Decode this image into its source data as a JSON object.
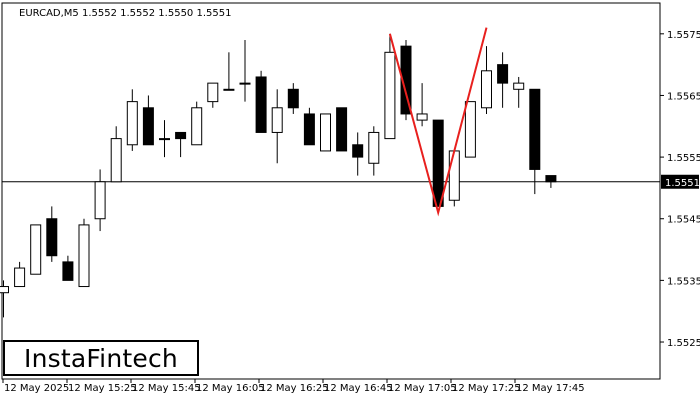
{
  "header": "EURCAD,M5  1.5552 1.5552 1.5550 1.5551",
  "logo_text": "InstaFintech",
  "colors": {
    "background": "#ffffff",
    "axis": "#000000",
    "bull_fill": "#ffffff",
    "bear_fill": "#000000",
    "pattern_line": "#e8201e",
    "price_line": "#000000"
  },
  "chart_data": {
    "type": "candlestick",
    "symbol": "EURCAD",
    "timeframe": "M5",
    "ylim": [
      1.5519,
      1.558
    ],
    "y_ticks": [
      "1.5575",
      "1.5565",
      "1.5555",
      "1.5545",
      "1.5535",
      "1.5525"
    ],
    "x_ticks": [
      "12 May 2025",
      "12 May 15:25",
      "12 May 15:45",
      "12 May 16:05",
      "12 May 16:25",
      "12 May 16:45",
      "12 May 17:05",
      "12 May 17:25",
      "12 May 17:45"
    ],
    "current_price": "1.5551",
    "candles": [
      {
        "o": 1.5533,
        "h": 1.5535,
        "l": 1.5529,
        "c": 1.5534
      },
      {
        "o": 1.5534,
        "h": 1.5538,
        "l": 1.5534,
        "c": 1.5537
      },
      {
        "o": 1.5536,
        "h": 1.5544,
        "l": 1.5536,
        "c": 1.5544
      },
      {
        "o": 1.5545,
        "h": 1.5547,
        "l": 1.5538,
        "c": 1.5539
      },
      {
        "o": 1.5538,
        "h": 1.5539,
        "l": 1.5535,
        "c": 1.5535
      },
      {
        "o": 1.5534,
        "h": 1.5545,
        "l": 1.5534,
        "c": 1.5544
      },
      {
        "o": 1.5545,
        "h": 1.5553,
        "l": 1.5543,
        "c": 1.5551
      },
      {
        "o": 1.5551,
        "h": 1.556,
        "l": 1.5551,
        "c": 1.5558
      },
      {
        "o": 1.5557,
        "h": 1.5566,
        "l": 1.5556,
        "c": 1.5564
      },
      {
        "o": 1.5563,
        "h": 1.5565,
        "l": 1.5557,
        "c": 1.5557
      },
      {
        "o": 1.5558,
        "h": 1.5561,
        "l": 1.5555,
        "c": 1.5558
      },
      {
        "o": 1.5559,
        "h": 1.5559,
        "l": 1.5555,
        "c": 1.5558
      },
      {
        "o": 1.5557,
        "h": 1.5564,
        "l": 1.5557,
        "c": 1.5563
      },
      {
        "o": 1.5564,
        "h": 1.5567,
        "l": 1.5563,
        "c": 1.5567
      },
      {
        "o": 1.5566,
        "h": 1.5572,
        "l": 1.5566,
        "c": 1.5566
      },
      {
        "o": 1.5567,
        "h": 1.5574,
        "l": 1.5564,
        "c": 1.5567
      },
      {
        "o": 1.5568,
        "h": 1.5569,
        "l": 1.5559,
        "c": 1.5559
      },
      {
        "o": 1.5559,
        "h": 1.5566,
        "l": 1.5554,
        "c": 1.5563
      },
      {
        "o": 1.5566,
        "h": 1.5567,
        "l": 1.5562,
        "c": 1.5563
      },
      {
        "o": 1.5562,
        "h": 1.5563,
        "l": 1.5557,
        "c": 1.5557
      },
      {
        "o": 1.5556,
        "h": 1.5562,
        "l": 1.5556,
        "c": 1.5562
      },
      {
        "o": 1.5563,
        "h": 1.5563,
        "l": 1.5556,
        "c": 1.5556
      },
      {
        "o": 1.5557,
        "h": 1.5559,
        "l": 1.5552,
        "c": 1.5555
      },
      {
        "o": 1.5554,
        "h": 1.556,
        "l": 1.5552,
        "c": 1.5559
      },
      {
        "o": 1.5558,
        "h": 1.5575,
        "l": 1.5558,
        "c": 1.5572
      },
      {
        "o": 1.5573,
        "h": 1.5574,
        "l": 1.5561,
        "c": 1.5562
      },
      {
        "o": 1.5561,
        "h": 1.5567,
        "l": 1.556,
        "c": 1.5562
      },
      {
        "o": 1.5561,
        "h": 1.5561,
        "l": 1.5547,
        "c": 1.5547
      },
      {
        "o": 1.5548,
        "h": 1.5556,
        "l": 1.5547,
        "c": 1.5556
      },
      {
        "o": 1.5555,
        "h": 1.5564,
        "l": 1.5555,
        "c": 1.5564
      },
      {
        "o": 1.5563,
        "h": 1.5573,
        "l": 1.5562,
        "c": 1.5569
      },
      {
        "o": 1.557,
        "h": 1.5572,
        "l": 1.5563,
        "c": 1.5567
      },
      {
        "o": 1.5566,
        "h": 1.5568,
        "l": 1.5563,
        "c": 1.5567
      },
      {
        "o": 1.5566,
        "h": 1.5566,
        "l": 1.5549,
        "c": 1.5553
      },
      {
        "o": 1.5552,
        "h": 1.5552,
        "l": 1.555,
        "c": 1.5551
      }
    ],
    "pattern_points": [
      {
        "i": 24,
        "price": 1.5575
      },
      {
        "i": 27,
        "price": 1.5546
      },
      {
        "i": 30,
        "price": 1.5576
      }
    ]
  }
}
